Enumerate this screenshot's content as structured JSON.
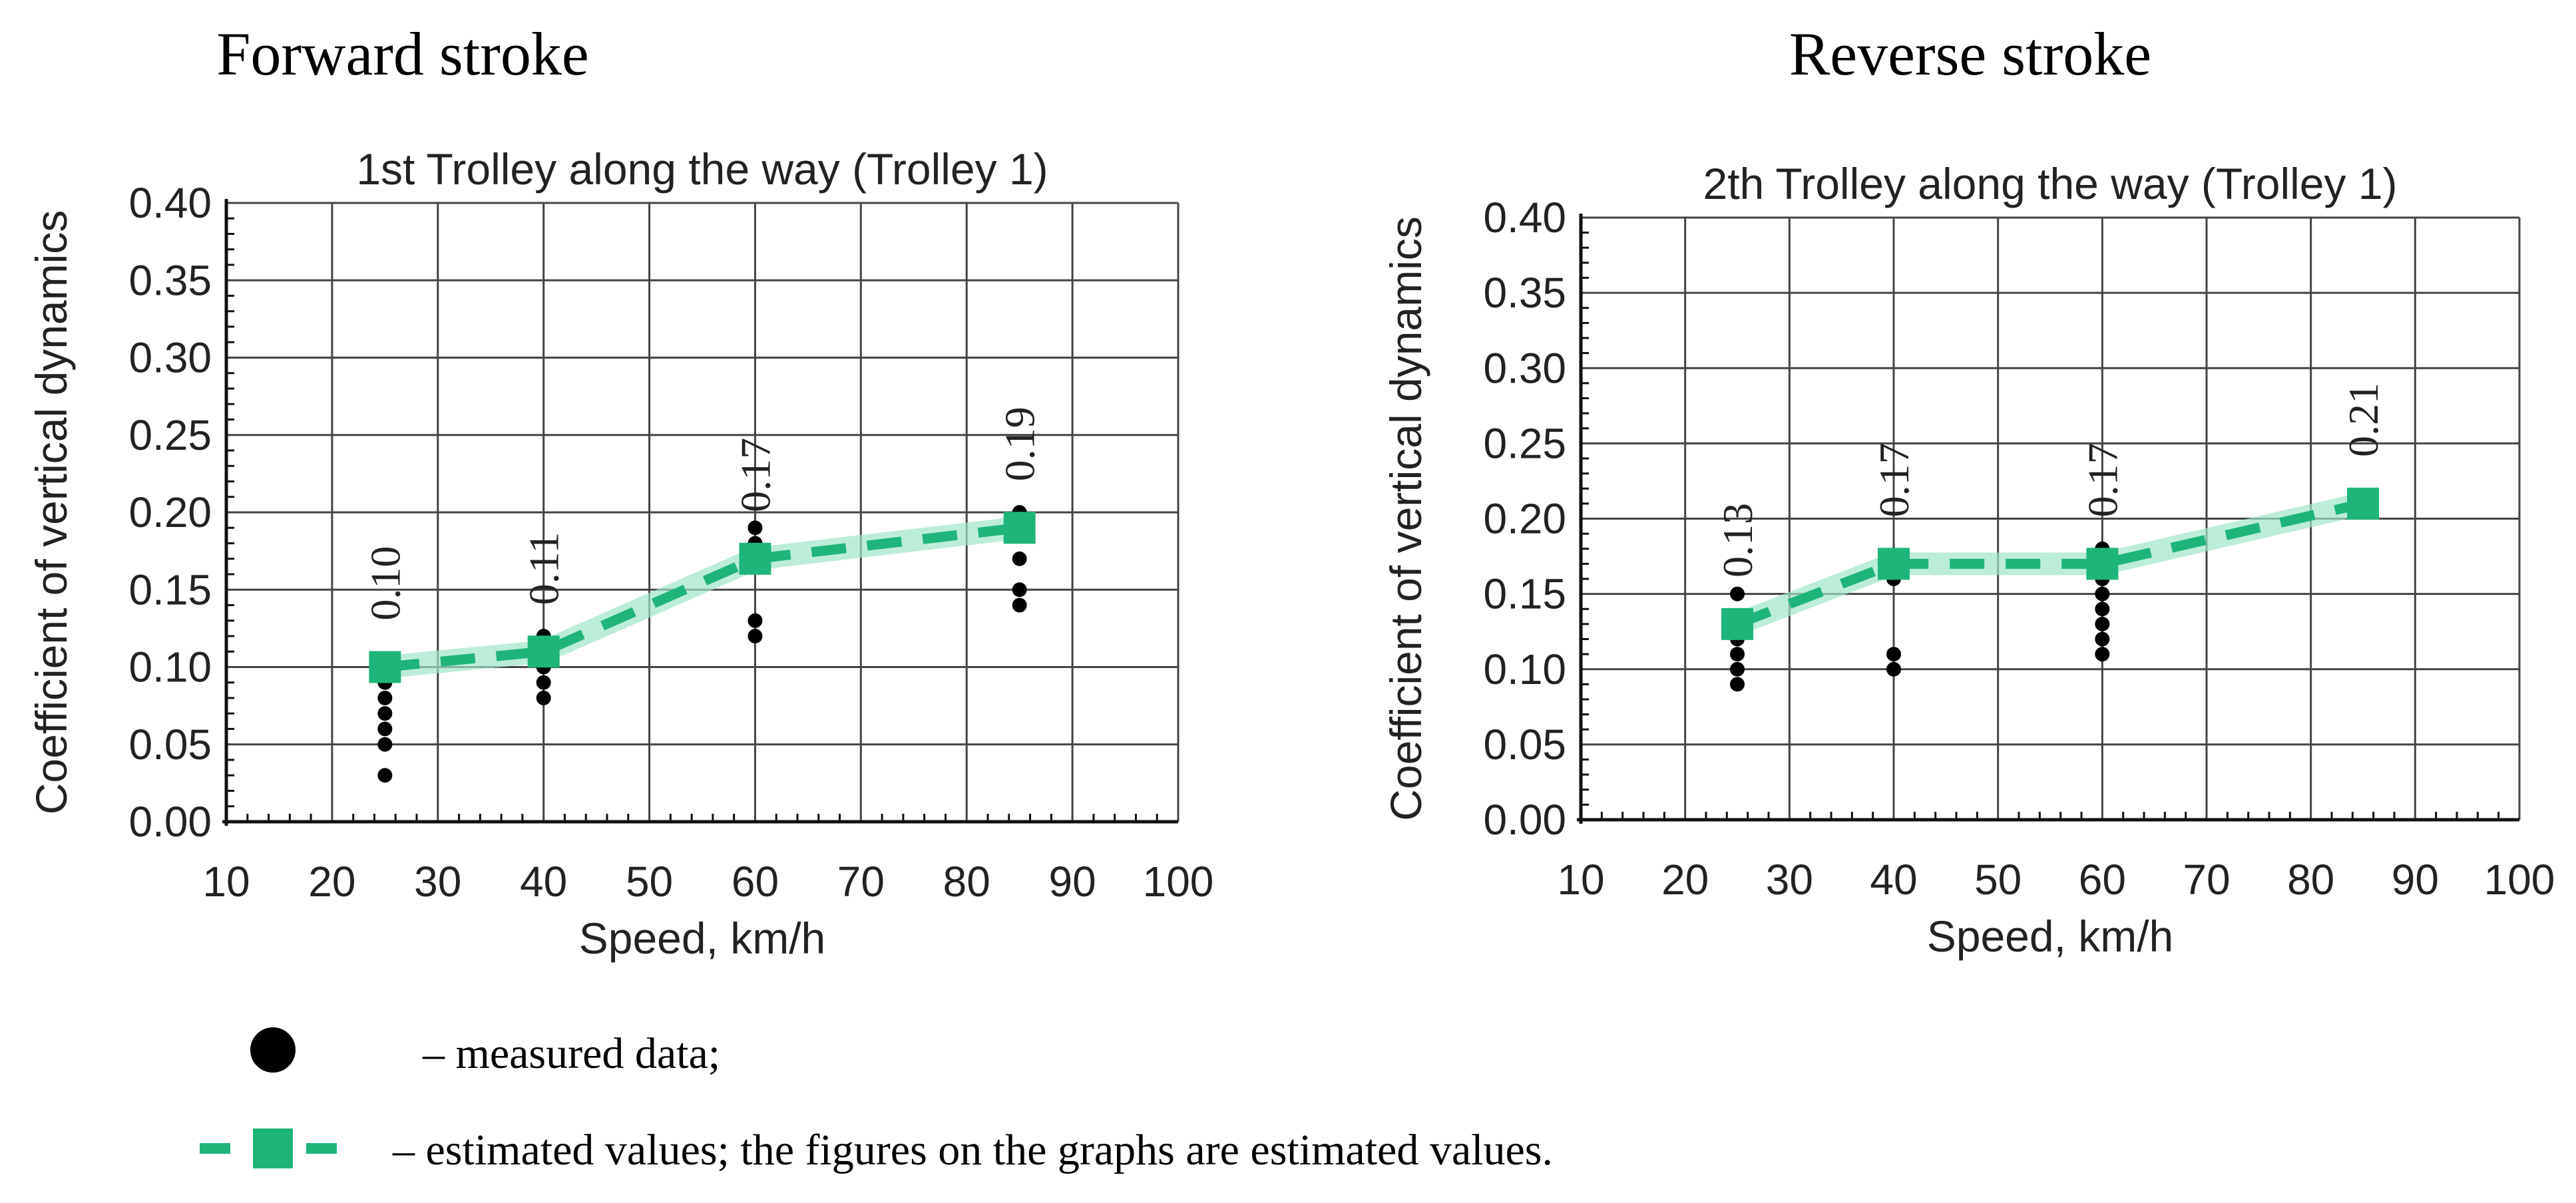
{
  "panel_titles": [
    "Forward stroke",
    "Reverse stroke"
  ],
  "legend": {
    "measured_label": "– measured data;",
    "estimated_label": "– estimated values; the figures on the graphs are estimated values."
  },
  "colors": {
    "measured": "#000000",
    "estimated": "#1fb57a",
    "estimated_band": "#9fe6c8",
    "grid": "#444444"
  },
  "chart_data": [
    {
      "type": "scatter",
      "title": "1st Trolley along the way (Trolley 1)",
      "xlabel": "Speed, km/h",
      "ylabel": "Coefficient of vertical dynamics",
      "xlim": [
        10,
        100
      ],
      "ylim": [
        0,
        0.4
      ],
      "x_ticks": [
        "10",
        "20",
        "30",
        "40",
        "50",
        "60",
        "70",
        "80",
        "90",
        "100"
      ],
      "y_ticks": [
        "0.00",
        "0.05",
        "0.10",
        "0.15",
        "0.20",
        "0.25",
        "0.30",
        "0.35",
        "0.40"
      ],
      "grid": true,
      "series": [
        {
          "name": "measured data",
          "points": [
            [
              25,
              0.03
            ],
            [
              25,
              0.05
            ],
            [
              25,
              0.06
            ],
            [
              25,
              0.07
            ],
            [
              25,
              0.08
            ],
            [
              25,
              0.09
            ],
            [
              25,
              0.1
            ],
            [
              40,
              0.08
            ],
            [
              40,
              0.09
            ],
            [
              40,
              0.1
            ],
            [
              40,
              0.11
            ],
            [
              40,
              0.12
            ],
            [
              60,
              0.12
            ],
            [
              60,
              0.13
            ],
            [
              60,
              0.17
            ],
            [
              60,
              0.18
            ],
            [
              60,
              0.19
            ],
            [
              85,
              0.14
            ],
            [
              85,
              0.15
            ],
            [
              85,
              0.17
            ],
            [
              85,
              0.19
            ],
            [
              85,
              0.2
            ]
          ]
        },
        {
          "name": "estimated values",
          "x": [
            25,
            40,
            60,
            85
          ],
          "y": [
            0.1,
            0.11,
            0.17,
            0.19
          ],
          "labels": [
            "0.10",
            "0.11",
            "0.17",
            "0.19"
          ]
        }
      ]
    },
    {
      "type": "scatter",
      "title": "2th Trolley along the way (Trolley 1)",
      "xlabel": "Speed, km/h",
      "ylabel": "Coefficient of vertical dynamics",
      "xlim": [
        10,
        100
      ],
      "ylim": [
        0,
        0.4
      ],
      "x_ticks": [
        "10",
        "20",
        "30",
        "40",
        "50",
        "60",
        "70",
        "80",
        "90",
        "100"
      ],
      "y_ticks": [
        "0.00",
        "0.05",
        "0.10",
        "0.15",
        "0.20",
        "0.25",
        "0.30",
        "0.35",
        "0.40"
      ],
      "grid": true,
      "series": [
        {
          "name": "measured data",
          "points": [
            [
              25,
              0.09
            ],
            [
              25,
              0.1
            ],
            [
              25,
              0.11
            ],
            [
              25,
              0.12
            ],
            [
              25,
              0.13
            ],
            [
              25,
              0.15
            ],
            [
              40,
              0.1
            ],
            [
              40,
              0.11
            ],
            [
              40,
              0.16
            ],
            [
              40,
              0.17
            ],
            [
              60,
              0.11
            ],
            [
              60,
              0.12
            ],
            [
              60,
              0.13
            ],
            [
              60,
              0.14
            ],
            [
              60,
              0.15
            ],
            [
              60,
              0.16
            ],
            [
              60,
              0.17
            ],
            [
              60,
              0.18
            ]
          ]
        },
        {
          "name": "estimated values",
          "x": [
            25,
            40,
            60,
            85
          ],
          "y": [
            0.13,
            0.17,
            0.17,
            0.21
          ],
          "labels": [
            "0.13",
            "0.17",
            "0.17",
            "0.21"
          ]
        }
      ]
    }
  ]
}
